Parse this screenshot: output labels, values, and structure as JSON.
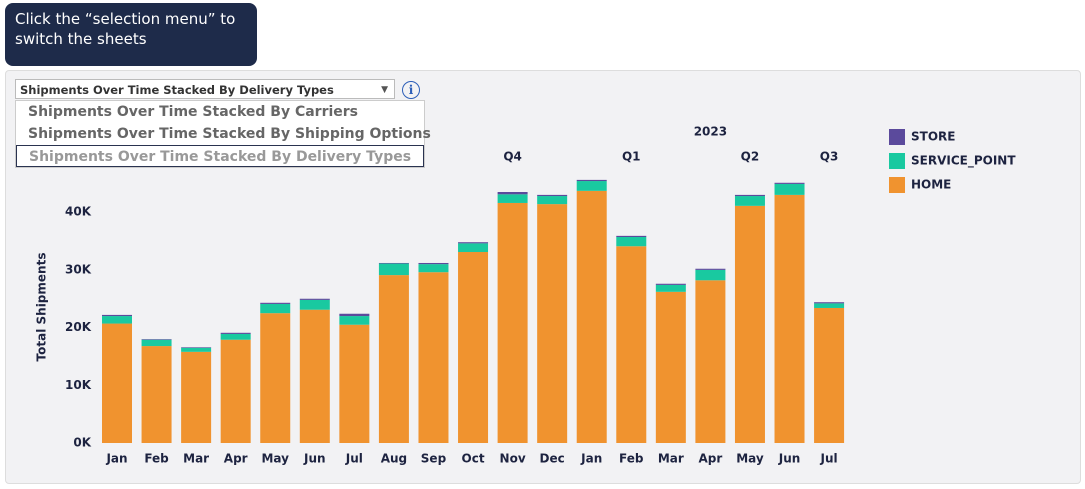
{
  "tooltip": {
    "text": "Click the “selection menu” to switch the sheets"
  },
  "selector": {
    "selected": "Shipments Over Time Stacked By Delivery Types",
    "options": [
      "Shipments Over Time Stacked By Carriers",
      "Shipments Over Time Stacked By Shipping Options",
      "Shipments Over Time Stacked By Delivery Types"
    ]
  },
  "chart_data": {
    "type": "bar",
    "stacked": true,
    "y_label": "Total Shipments",
    "categories": [
      "Jan",
      "Feb",
      "Mar",
      "Apr",
      "May",
      "Jun",
      "Jul",
      "Aug",
      "Sep",
      "Oct",
      "Nov",
      "Dec",
      "Jan",
      "Feb",
      "Mar",
      "Apr",
      "May",
      "Jun",
      "Jul"
    ],
    "quarters": [
      null,
      null,
      null,
      null,
      null,
      null,
      null,
      null,
      null,
      null,
      "Q4",
      null,
      null,
      "Q1",
      null,
      null,
      "Q2",
      null,
      "Q3"
    ],
    "years": [
      null,
      null,
      null,
      null,
      null,
      null,
      null,
      null,
      null,
      null,
      null,
      null,
      null,
      null,
      null,
      "2023",
      null,
      null,
      null
    ],
    "series": [
      {
        "name": "STORE",
        "color": "#5b4a9c",
        "values": [
          0.2,
          0.1,
          0.1,
          0.2,
          0.2,
          0.2,
          0.4,
          0.1,
          0.2,
          0.2,
          0.4,
          0.2,
          0.2,
          0.2,
          0.2,
          0.2,
          0.2,
          0.2,
          0.2
        ]
      },
      {
        "name": "SERVICE_POINT",
        "color": "#19c9a0",
        "values": [
          1.3,
          1.1,
          0.7,
          1.0,
          1.6,
          1.7,
          1.5,
          2.0,
          1.4,
          1.5,
          1.5,
          1.4,
          1.7,
          1.6,
          1.2,
          1.8,
          1.7,
          1.9,
          0.8
        ]
      },
      {
        "name": "HOME",
        "color": "#f0932f",
        "values": [
          20.7,
          16.8,
          15.8,
          17.9,
          22.5,
          23.1,
          20.5,
          29.1,
          29.6,
          33.1,
          41.6,
          41.4,
          43.7,
          34.1,
          26.2,
          28.2,
          41.1,
          43.0,
          23.4
        ]
      }
    ],
    "ylim": [
      0,
      47
    ],
    "yticks": [
      {
        "value": 0,
        "label": "0K"
      },
      {
        "value": 10,
        "label": "10K"
      },
      {
        "value": 20,
        "label": "20K"
      },
      {
        "value": 30,
        "label": "30K"
      },
      {
        "value": 40,
        "label": "40K"
      }
    ]
  }
}
